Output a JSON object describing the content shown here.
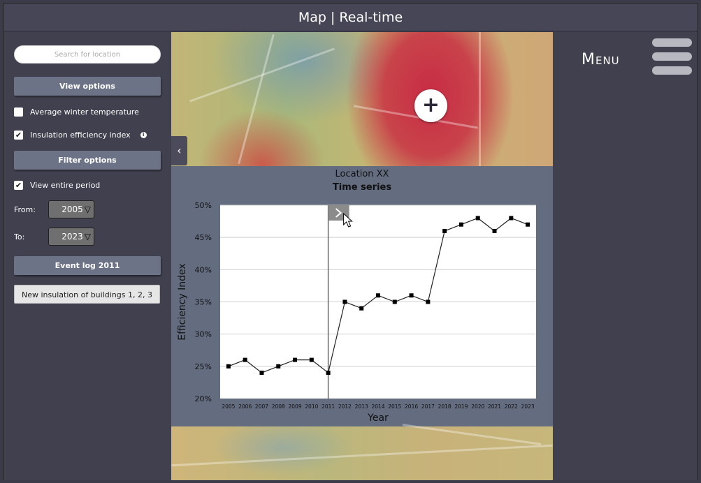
{
  "header": {
    "title": "Map | Real-time"
  },
  "sidebar": {
    "search_placeholder": "Search for location",
    "view_options_label": "View options",
    "options": [
      {
        "label": "Average winter temperature",
        "checked": false
      },
      {
        "label": "Insulation efficiency index",
        "checked": true,
        "info_icon": "info-icon"
      }
    ],
    "filter_options_label": "Filter options",
    "view_entire_period": {
      "label": "View entire  period",
      "checked": true
    },
    "from": {
      "label": "From:",
      "value": "2005"
    },
    "to": {
      "label": "To:",
      "value": "2023"
    },
    "event_log_label": "Event log 2011",
    "event_item_label": "New insulation of buildings 1, 2, 3"
  },
  "map": {
    "plus_icon": "plus-icon",
    "collapse_icon": "chevron-left-icon",
    "heatmap_colors": {
      "hot": "#c8143c",
      "warm": "#dc5a3c",
      "cool": "#5a8cc8"
    }
  },
  "chart_panel": {
    "location_title": "Location XX",
    "series_title": "Time series",
    "expand_icon": "chevron-right-icon"
  },
  "chart_data": {
    "type": "line",
    "title": "Time series",
    "xlabel": "Year",
    "ylabel": "Efficiency Index",
    "x": [
      2005,
      2006,
      2007,
      2008,
      2009,
      2010,
      2011,
      2012,
      2013,
      2014,
      2015,
      2016,
      2017,
      2018,
      2019,
      2020,
      2021,
      2022,
      2023
    ],
    "values": [
      25,
      26,
      24,
      25,
      26,
      26,
      24,
      35,
      34,
      36,
      35,
      36,
      35,
      46,
      47,
      48,
      46,
      48,
      47
    ],
    "ylim": [
      20,
      50
    ],
    "yticks": [
      "20%",
      "25%",
      "30%",
      "35%",
      "40%",
      "45%",
      "50%"
    ],
    "marker_line_x": 2011,
    "grid": true,
    "line_color": "#222222"
  },
  "menu": {
    "label": "Menu",
    "icon": "hamburger-icon"
  }
}
